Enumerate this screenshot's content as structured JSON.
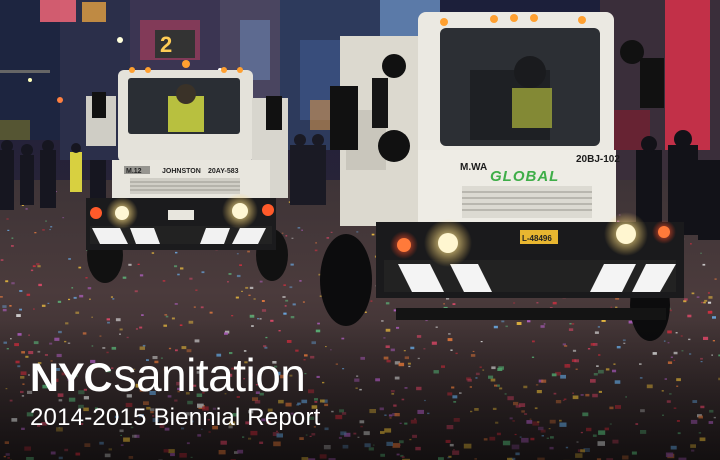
{
  "cover": {
    "brand_prefix": "NYC",
    "brand_word": "sanitation",
    "subtitle": "2014-2015 Biennial Report"
  },
  "photo": {
    "description_icons": [
      "street-sweeper-truck",
      "confetti-debris"
    ],
    "sweeper_left": {
      "unit_label": "M.12",
      "maker_label": "JOHNSTON",
      "plate_label": "20AY-583"
    },
    "sweeper_right": {
      "unit_label": "M.WA",
      "brand_label": "GLOBAL",
      "plate_label": "20BJ-102",
      "license_plate": "L-48496"
    },
    "billboard_digits": "2"
  },
  "colors": {
    "truck_body": "#e9e7e0",
    "truck_dark": "#2a2b2e",
    "brand_green": "#3fae49",
    "headlight": "#fff4c8",
    "beacon": "#ff9a2a"
  }
}
